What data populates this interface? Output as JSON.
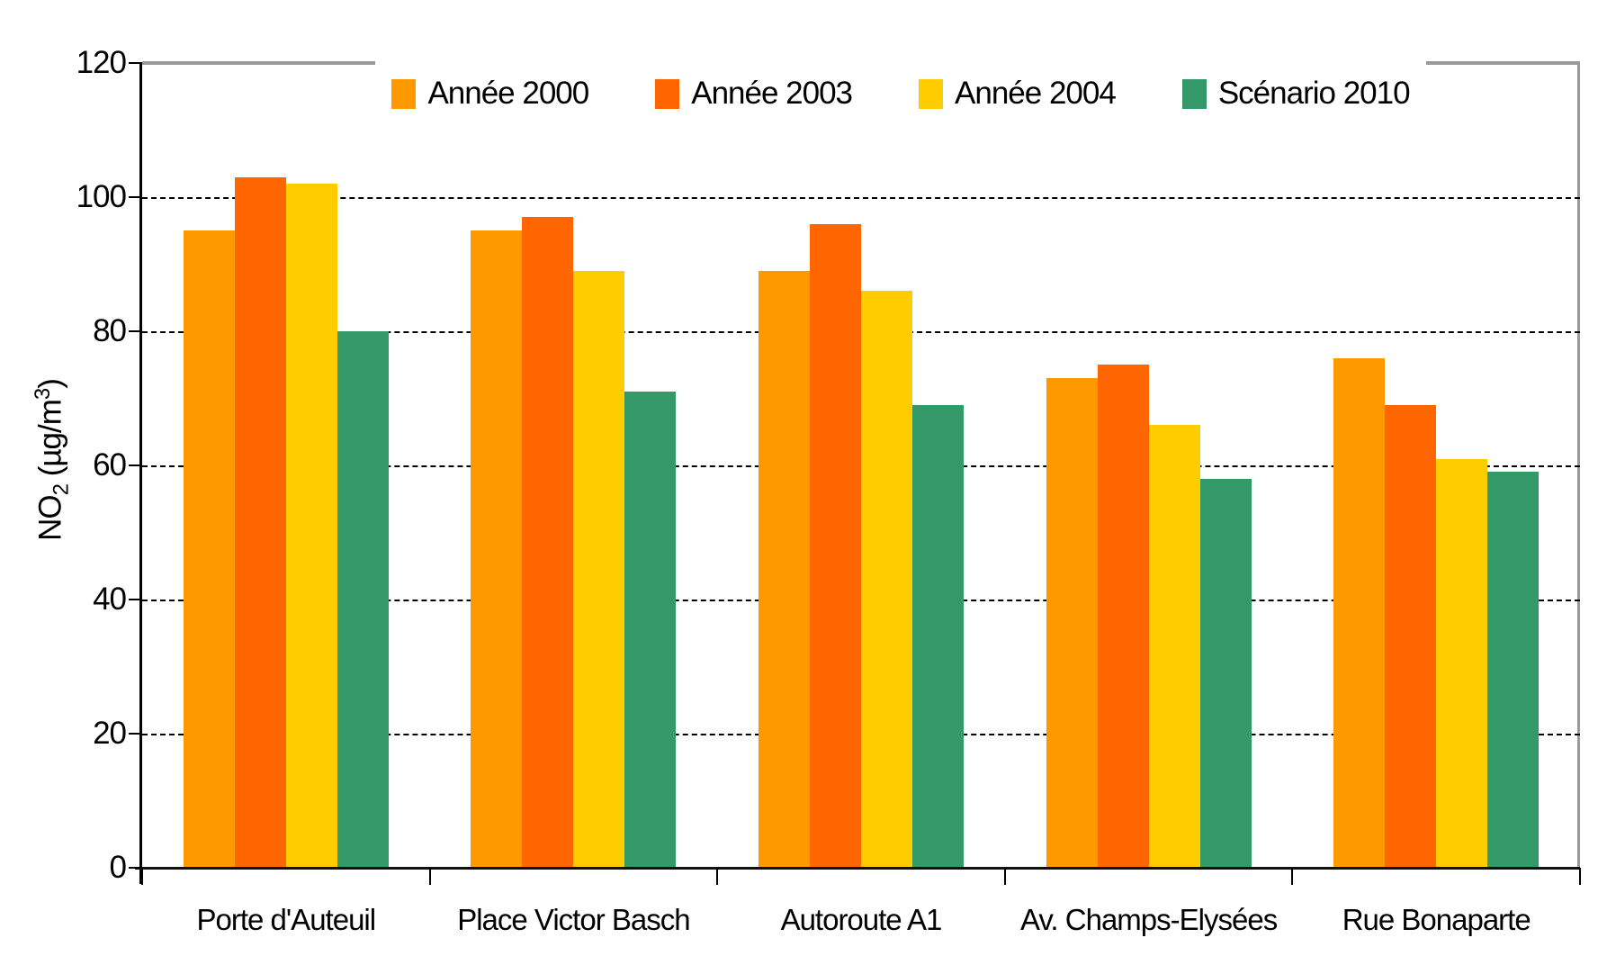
{
  "chart_data": {
    "type": "bar",
    "title": "",
    "categories": [
      "Porte d'Auteuil",
      "Place Victor Basch",
      "Autoroute A1",
      "Av. Champs-Elysées",
      "Rue Bonaparte"
    ],
    "series": [
      {
        "name": "Année 2000",
        "color": "#FF9900",
        "values": [
          95,
          95,
          89,
          73,
          76
        ]
      },
      {
        "name": "Année 2003",
        "color": "#FF6600",
        "values": [
          103,
          97,
          96,
          75,
          69
        ]
      },
      {
        "name": "Année 2004",
        "color": "#FFCC00",
        "values": [
          102,
          89,
          86,
          66,
          61
        ]
      },
      {
        "name": "Scénario 2010",
        "color": "#339966",
        "values": [
          80,
          71,
          69,
          58,
          59
        ]
      }
    ],
    "xlabel": "",
    "ylabel": "NO₂ (µg/m³)",
    "ylabel_parts": {
      "main": "NO",
      "sub": "2",
      "mid": " (µg/m",
      "sup": "3",
      "end": ")"
    },
    "ylim": [
      0,
      120
    ],
    "yticks": [
      0,
      20,
      40,
      60,
      80,
      100,
      120
    ],
    "grid": "horizontal-dashed",
    "legend_position": "top-inside"
  },
  "colors": {
    "background": "#FFFFFF",
    "plot_border": "#999999",
    "axis": "#000000",
    "gridline": "#000000",
    "text": "#000000"
  }
}
